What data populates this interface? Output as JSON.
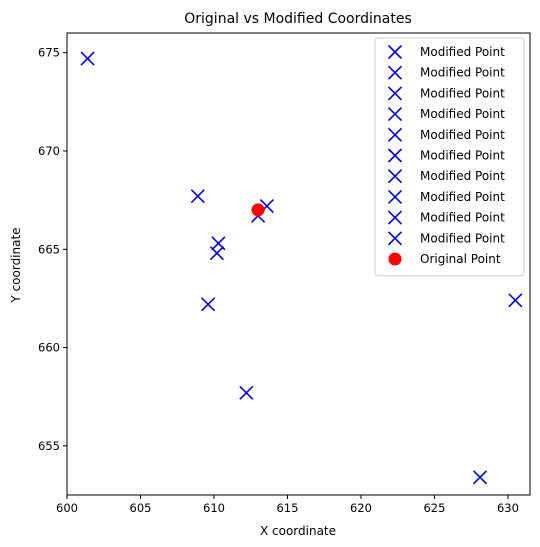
{
  "chart_data": {
    "type": "scatter",
    "title": "Original vs Modified Coordinates",
    "xlabel": "X coordinate",
    "ylabel": "Y coordinate",
    "xlim": [
      600.0,
      631.5
    ],
    "ylim": [
      652.5,
      676.0
    ],
    "xticks": [
      600,
      605,
      610,
      615,
      620,
      625,
      630
    ],
    "yticks": [
      655,
      660,
      665,
      670,
      675
    ],
    "grid": false,
    "legend_position": "top-right",
    "series": [
      {
        "name": "Modified Point",
        "marker": "x",
        "color": "#0000ff",
        "x": [
          601.4
        ],
        "y": [
          674.7
        ]
      },
      {
        "name": "Modified Point",
        "marker": "x",
        "color": "#0000ff",
        "x": [
          608.9
        ],
        "y": [
          667.7
        ]
      },
      {
        "name": "Modified Point",
        "marker": "x",
        "color": "#0000ff",
        "x": [
          613.6
        ],
        "y": [
          667.2
        ]
      },
      {
        "name": "Modified Point",
        "marker": "x",
        "color": "#0000ff",
        "x": [
          613.0
        ],
        "y": [
          666.7
        ]
      },
      {
        "name": "Modified Point",
        "marker": "x",
        "color": "#0000ff",
        "x": [
          610.3
        ],
        "y": [
          665.3
        ]
      },
      {
        "name": "Modified Point",
        "marker": "x",
        "color": "#0000ff",
        "x": [
          610.2
        ],
        "y": [
          664.8
        ]
      },
      {
        "name": "Modified Point",
        "marker": "x",
        "color": "#0000ff",
        "x": [
          609.6
        ],
        "y": [
          662.2
        ]
      },
      {
        "name": "Modified Point",
        "marker": "x",
        "color": "#0000ff",
        "x": [
          630.5
        ],
        "y": [
          662.4
        ]
      },
      {
        "name": "Modified Point",
        "marker": "x",
        "color": "#0000ff",
        "x": [
          612.2
        ],
        "y": [
          657.7
        ]
      },
      {
        "name": "Modified Point",
        "marker": "x",
        "color": "#0000ff",
        "x": [
          628.1
        ],
        "y": [
          653.4
        ]
      },
      {
        "name": "Original Point",
        "marker": "o",
        "color": "#ff0000",
        "x": [
          613.0
        ],
        "y": [
          667.0
        ]
      }
    ]
  }
}
